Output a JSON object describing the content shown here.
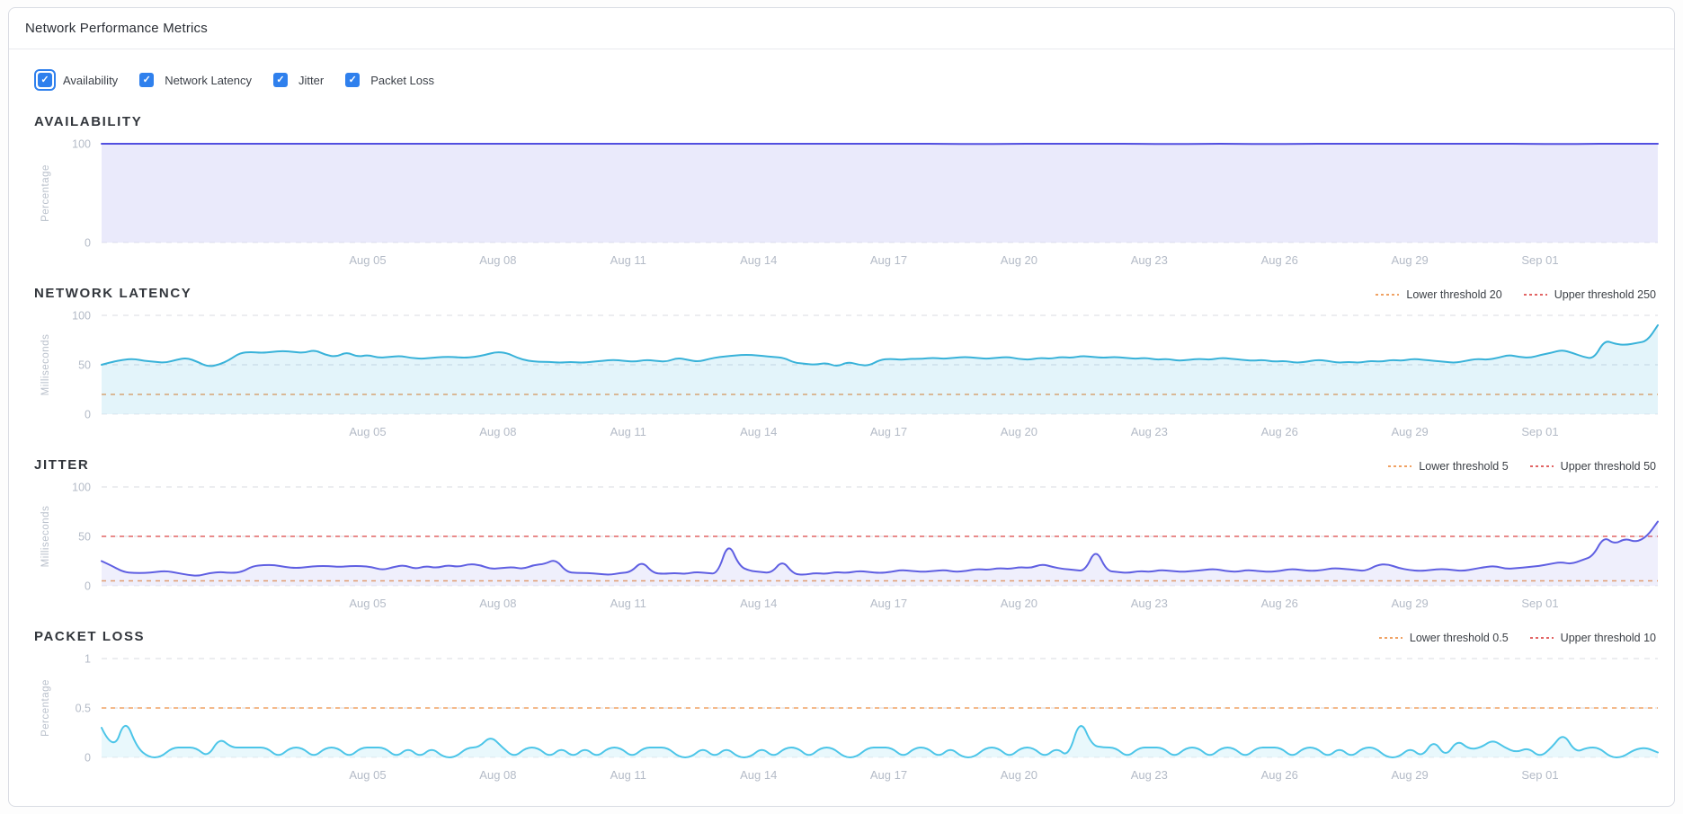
{
  "header": {
    "title": "Network Performance Metrics"
  },
  "icons": {
    "check": "✓"
  },
  "filters": {
    "items": [
      {
        "label": "Availability",
        "checked": true,
        "focused": true
      },
      {
        "label": "Network Latency",
        "checked": true,
        "focused": false
      },
      {
        "label": "Jitter",
        "checked": true,
        "focused": false
      },
      {
        "label": "Packet Loss",
        "checked": true,
        "focused": false
      }
    ]
  },
  "colors": {
    "checkbox": "#2f80ed",
    "grid": "#d8dbe2",
    "zero_grid": "#e9ebef",
    "tick_text": "#b4bbc7",
    "axis_title_text": "#b9c0cb",
    "lower_threshold": "#f0a264",
    "upper_threshold": "#e26565"
  },
  "x_axis": {
    "labels": [
      "Aug 05",
      "Aug 08",
      "Aug 11",
      "Aug 14",
      "Aug 17",
      "Aug 20",
      "Aug 23",
      "Aug 26",
      "Aug 29",
      "Sep 01"
    ]
  },
  "chart_data": [
    {
      "id": "availability",
      "title": "AVAILABILITY",
      "type": "area",
      "ylabel": "Percentage",
      "ylim": [
        0,
        100
      ],
      "yticks": [
        0,
        100
      ],
      "grid": true,
      "legend_position": "none",
      "line_color": "#524fe0",
      "fill_color": "rgba(84,81,226,0.12)",
      "thresholds": [],
      "values": [
        100,
        100,
        100,
        100,
        100,
        100,
        100,
        100,
        100,
        100,
        100,
        100,
        100,
        100,
        100,
        100,
        100,
        100,
        100,
        100,
        100,
        100,
        100,
        100,
        100,
        100,
        100,
        99.6,
        100,
        100,
        100,
        100,
        100,
        99.6,
        100,
        100,
        99.6,
        100,
        100,
        100,
        100,
        100,
        100,
        100,
        100,
        99.6,
        100,
        100,
        100
      ]
    },
    {
      "id": "network-latency",
      "title": "NETWORK LATENCY",
      "type": "area",
      "ylabel": "Milliseconds",
      "ylim": [
        0,
        100
      ],
      "yticks": [
        0,
        50,
        100
      ],
      "grid": true,
      "legend_position": "top-right",
      "line_color": "#38b2d9",
      "fill_color": "rgba(56,178,217,0.14)",
      "thresholds": [
        {
          "kind": "lower",
          "label": "Lower threshold 20",
          "value": 20
        },
        {
          "kind": "upper",
          "label": "Upper threshold 250",
          "value": 250
        }
      ],
      "values": [
        50,
        53,
        55,
        56,
        54,
        53,
        52,
        55,
        57,
        53,
        48,
        50,
        55,
        62,
        63,
        62,
        63,
        64,
        63,
        62,
        65,
        60,
        58,
        63,
        58,
        60,
        57,
        58,
        59,
        57,
        56,
        57,
        58,
        58,
        57,
        58,
        60,
        63,
        62,
        57,
        54,
        53,
        53,
        52,
        53,
        52,
        53,
        54,
        55,
        54,
        53,
        55,
        54,
        53,
        57,
        55,
        53,
        56,
        58,
        59,
        60,
        60,
        59,
        58,
        57,
        52,
        51,
        50,
        52,
        48,
        53,
        50,
        49,
        55,
        56,
        55,
        56,
        56,
        57,
        56,
        57,
        58,
        57,
        56,
        57,
        58,
        56,
        55,
        57,
        56,
        58,
        57,
        59,
        58,
        57,
        58,
        57,
        56,
        57,
        55,
        56,
        54,
        55,
        56,
        55,
        57,
        56,
        55,
        54,
        55,
        53,
        54,
        52,
        53,
        55,
        54,
        52,
        53,
        52,
        54,
        53,
        55,
        54,
        56,
        55,
        54,
        53,
        52,
        54,
        56,
        55,
        57,
        60,
        58,
        57,
        60,
        62,
        65,
        62,
        58,
        56,
        75,
        71,
        70,
        72,
        74,
        90
      ]
    },
    {
      "id": "jitter",
      "title": "JITTER",
      "type": "area",
      "ylabel": "Milliseconds",
      "ylim": [
        0,
        100
      ],
      "yticks": [
        0,
        50,
        100
      ],
      "grid": true,
      "legend_position": "top-right",
      "line_color": "#5f5fe2",
      "fill_color": "rgba(95,95,226,0.10)",
      "thresholds": [
        {
          "kind": "lower",
          "label": "Lower threshold 5",
          "value": 5
        },
        {
          "kind": "upper",
          "label": "Upper threshold 50",
          "value": 50
        }
      ],
      "values": [
        25,
        20,
        14,
        13,
        13,
        14,
        15,
        13,
        11,
        10,
        13,
        14,
        13,
        14,
        20,
        21,
        21,
        19,
        18,
        19,
        20,
        20,
        19,
        20,
        20,
        19,
        16,
        19,
        21,
        17,
        20,
        18,
        21,
        19,
        22,
        21,
        17,
        18,
        19,
        17,
        21,
        22,
        27,
        14,
        13,
        13,
        12,
        11,
        13,
        14,
        25,
        13,
        12,
        13,
        12,
        14,
        13,
        12,
        45,
        20,
        15,
        14,
        13,
        26,
        12,
        11,
        13,
        12,
        14,
        13,
        15,
        14,
        13,
        14,
        16,
        15,
        14,
        15,
        16,
        14,
        15,
        17,
        16,
        18,
        17,
        19,
        18,
        22,
        19,
        17,
        16,
        15,
        38,
        15,
        14,
        13,
        15,
        14,
        16,
        15,
        14,
        15,
        16,
        17,
        15,
        14,
        16,
        15,
        14,
        15,
        17,
        16,
        15,
        16,
        18,
        17,
        16,
        15,
        21,
        22,
        18,
        16,
        15,
        16,
        17,
        16,
        15,
        17,
        19,
        20,
        17,
        18,
        19,
        20,
        22,
        24,
        22,
        26,
        30,
        50,
        42,
        48,
        44,
        50,
        65
      ]
    },
    {
      "id": "packet-loss",
      "title": "PACKET LOSS",
      "type": "area",
      "ylabel": "Percentage",
      "ylim": [
        0,
        1
      ],
      "yticks": [
        0,
        0.5,
        1
      ],
      "grid": true,
      "legend_position": "top-right",
      "line_color": "#4cc5e8",
      "fill_color": "rgba(76,197,232,0.12)",
      "thresholds": [
        {
          "kind": "lower",
          "label": "Lower threshold 0.5",
          "value": 0.5
        },
        {
          "kind": "upper",
          "label": "Upper threshold 10",
          "value": 10
        }
      ],
      "values": [
        0.3,
        0.05,
        0.4,
        0.1,
        0,
        0,
        0.1,
        0.1,
        0.1,
        0,
        0.2,
        0.1,
        0.1,
        0.1,
        0.1,
        0,
        0.1,
        0.1,
        0,
        0.1,
        0.1,
        0,
        0.1,
        0.1,
        0.1,
        0,
        0.1,
        0,
        0.1,
        0,
        0,
        0.1,
        0.1,
        0.22,
        0.1,
        0,
        0.1,
        0.1,
        0,
        0.1,
        0,
        0.1,
        0,
        0.1,
        0.1,
        0,
        0.1,
        0.1,
        0.1,
        0,
        0,
        0.1,
        0,
        0.1,
        0,
        0,
        0.1,
        0,
        0.1,
        0.1,
        0,
        0.1,
        0.1,
        0,
        0,
        0.1,
        0.1,
        0.1,
        0,
        0.1,
        0.1,
        0,
        0.1,
        0,
        0,
        0.1,
        0.1,
        0,
        0.1,
        0.1,
        0,
        0.1,
        0,
        0.4,
        0.12,
        0.1,
        0.1,
        0,
        0.1,
        0.1,
        0.1,
        0,
        0.1,
        0.1,
        0,
        0.1,
        0.1,
        0,
        0.1,
        0.1,
        0.1,
        0,
        0.1,
        0.1,
        0,
        0.1,
        0,
        0.1,
        0.1,
        0,
        0,
        0.1,
        0,
        0.18,
        0,
        0.18,
        0.08,
        0.1,
        0.18,
        0.1,
        0.05,
        0.1,
        0,
        0.1,
        0.25,
        0.05,
        0.1,
        0.1,
        0,
        0,
        0.08,
        0.1,
        0.05
      ]
    }
  ]
}
